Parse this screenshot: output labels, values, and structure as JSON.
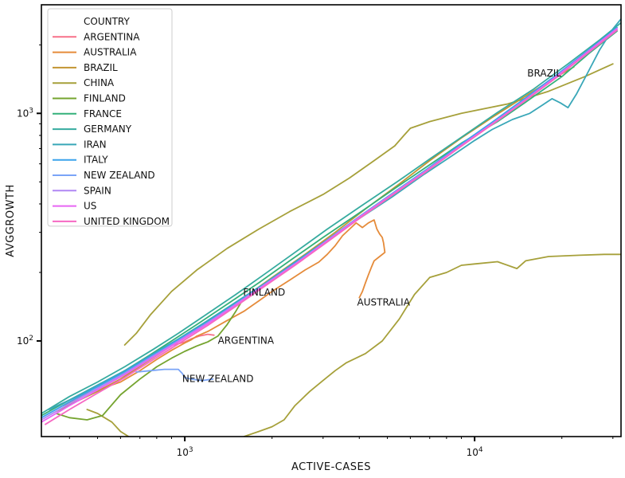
{
  "chart_data": {
    "type": "line",
    "xlabel": "ACTIVE-CASES",
    "ylabel": "AVGGROWTH",
    "xscale": "log",
    "yscale": "log",
    "xlim": [
      320,
      32000
    ],
    "ylim": [
      38,
      3000
    ],
    "xticks": [
      {
        "value": 1000,
        "base": "10",
        "exp": "3"
      },
      {
        "value": 10000,
        "base": "10",
        "exp": "4"
      }
    ],
    "yticks": [
      {
        "value": 100,
        "base": "10",
        "exp": "2"
      },
      {
        "value": 1000,
        "base": "10",
        "exp": "3"
      }
    ],
    "grid": false,
    "legend": {
      "title": "COUNTRY",
      "position": "top-left"
    },
    "series": [
      {
        "name": "ARGENTINA",
        "color": "#f77189",
        "points": [
          [
            920,
            96
          ],
          [
            1000,
            99
          ],
          [
            1050,
            102
          ],
          [
            1120,
            105
          ],
          [
            1200,
            107
          ],
          [
            1260,
            106
          ]
        ]
      },
      {
        "name": "AUSTRALIA",
        "color": "#e58b3a",
        "points": [
          [
            380,
            52
          ],
          [
            420,
            55
          ],
          [
            460,
            59
          ],
          [
            520,
            62
          ],
          [
            600,
            66
          ],
          [
            700,
            74
          ],
          [
            800,
            83
          ],
          [
            900,
            91
          ],
          [
            1000,
            98
          ],
          [
            1050,
            101
          ],
          [
            1100,
            105
          ],
          [
            1200,
            110
          ],
          [
            1400,
            123
          ],
          [
            1600,
            135
          ],
          [
            1800,
            150
          ],
          [
            2000,
            165
          ],
          [
            2300,
            185
          ],
          [
            2600,
            205
          ],
          [
            2900,
            222
          ],
          [
            3100,
            240
          ],
          [
            3300,
            262
          ],
          [
            3500,
            290
          ],
          [
            3700,
            310
          ],
          [
            3900,
            330
          ],
          [
            4100,
            315
          ],
          [
            4300,
            330
          ],
          [
            4500,
            340
          ],
          [
            4600,
            310
          ],
          [
            4700,
            295
          ],
          [
            4800,
            285
          ],
          [
            4850,
            270
          ],
          [
            4900,
            245
          ],
          [
            4700,
            235
          ],
          [
            4500,
            225
          ],
          [
            4400,
            210
          ],
          [
            4300,
            195
          ],
          [
            4200,
            180
          ],
          [
            4100,
            165
          ],
          [
            4000,
            155
          ]
        ]
      },
      {
        "name": "BRAZIL",
        "color": "#c39532",
        "points": [
          [
            360,
            49
          ],
          [
            420,
            54
          ],
          [
            500,
            60
          ],
          [
            600,
            68
          ],
          [
            750,
            82
          ],
          [
            900,
            95
          ],
          [
            1100,
            112
          ],
          [
            1300,
            130
          ],
          [
            1600,
            155
          ],
          [
            2000,
            190
          ],
          [
            2600,
            240
          ],
          [
            3300,
            300
          ],
          [
            4200,
            380
          ],
          [
            5500,
            490
          ],
          [
            7000,
            620
          ],
          [
            9000,
            780
          ],
          [
            11500,
            960
          ],
          [
            14500,
            1160
          ],
          [
            18000,
            1380
          ],
          [
            20500,
            1520
          ],
          [
            22000,
            1600
          ]
        ]
      },
      {
        "name": "CHINA",
        "color": "#a6a03a",
        "points": [
          [
            620,
            96
          ],
          [
            680,
            108
          ],
          [
            760,
            130
          ],
          [
            900,
            165
          ],
          [
            1100,
            205
          ],
          [
            1400,
            255
          ],
          [
            1800,
            310
          ],
          [
            2300,
            370
          ],
          [
            3000,
            440
          ],
          [
            3700,
            520
          ],
          [
            4500,
            620
          ],
          [
            5300,
            720
          ],
          [
            5700,
            800
          ],
          [
            6000,
            860
          ],
          [
            7000,
            920
          ],
          [
            9000,
            1000
          ],
          [
            13000,
            1100
          ],
          [
            18000,
            1250
          ],
          [
            24000,
            1450
          ],
          [
            30000,
            1650
          ]
        ]
      },
      {
        "name": "CHINA",
        "color": "#a6a03a",
        "points": [
          [
            1600,
            38
          ],
          [
            1800,
            40
          ],
          [
            2000,
            42
          ],
          [
            2200,
            45
          ],
          [
            2400,
            52
          ],
          [
            2700,
            60
          ],
          [
            3000,
            67
          ],
          [
            3300,
            74
          ],
          [
            3600,
            80
          ],
          [
            4200,
            88
          ],
          [
            4800,
            100
          ],
          [
            5500,
            125
          ],
          [
            6200,
            160
          ],
          [
            7000,
            190
          ],
          [
            8000,
            200
          ],
          [
            9000,
            215
          ],
          [
            10000,
            218
          ],
          [
            12000,
            223
          ],
          [
            14000,
            208
          ],
          [
            15000,
            225
          ],
          [
            18000,
            235
          ],
          [
            23000,
            238
          ],
          [
            28000,
            240
          ],
          [
            32000,
            240
          ]
        ]
      },
      {
        "name": "CHINA",
        "color": "#a6a03a",
        "points": [
          [
            460,
            50
          ],
          [
            500,
            48
          ],
          [
            560,
            44
          ],
          [
            600,
            40
          ],
          [
            640,
            38
          ]
        ]
      },
      {
        "name": "FINLAND",
        "color": "#75a42f",
        "points": [
          [
            360,
            48
          ],
          [
            400,
            46
          ],
          [
            460,
            45
          ],
          [
            520,
            47
          ],
          [
            600,
            58
          ],
          [
            700,
            68
          ],
          [
            800,
            77
          ],
          [
            900,
            84
          ],
          [
            1000,
            90
          ],
          [
            1100,
            95
          ],
          [
            1200,
            99
          ],
          [
            1300,
            105
          ],
          [
            1400,
            118
          ],
          [
            1500,
            135
          ],
          [
            1600,
            155
          ]
        ]
      },
      {
        "name": "FRANCE",
        "color": "#33b07a",
        "points": [
          [
            320,
            47
          ],
          [
            400,
            55
          ],
          [
            500,
            63
          ],
          [
            600,
            72
          ],
          [
            750,
            86
          ],
          [
            900,
            100
          ],
          [
            1100,
            118
          ],
          [
            1400,
            145
          ],
          [
            1800,
            180
          ],
          [
            2300,
            225
          ],
          [
            3000,
            285
          ],
          [
            4000,
            365
          ],
          [
            5200,
            460
          ],
          [
            6800,
            580
          ],
          [
            9000,
            740
          ],
          [
            12000,
            920
          ],
          [
            15000,
            1120
          ],
          [
            20000,
            1450
          ],
          [
            25000,
            1850
          ],
          [
            31000,
            2300
          ]
        ]
      },
      {
        "name": "GERMANY",
        "color": "#36ab9f",
        "points": [
          [
            320,
            48
          ],
          [
            400,
            57
          ],
          [
            500,
            66
          ],
          [
            620,
            77
          ],
          [
            780,
            92
          ],
          [
            950,
            108
          ],
          [
            1200,
            132
          ],
          [
            1500,
            160
          ],
          [
            1900,
            198
          ],
          [
            2400,
            245
          ],
          [
            3100,
            310
          ],
          [
            4100,
            395
          ],
          [
            5400,
            500
          ],
          [
            7000,
            630
          ],
          [
            9200,
            800
          ],
          [
            12000,
            1010
          ],
          [
            16000,
            1280
          ],
          [
            21000,
            1650
          ],
          [
            27000,
            2100
          ],
          [
            32000,
            2500
          ]
        ]
      },
      {
        "name": "IRAN",
        "color": "#39a7b8",
        "points": [
          [
            340,
            50
          ],
          [
            400,
            55
          ],
          [
            500,
            64
          ],
          [
            620,
            74
          ],
          [
            780,
            88
          ],
          [
            950,
            102
          ],
          [
            1200,
            123
          ],
          [
            1500,
            148
          ],
          [
            1900,
            180
          ],
          [
            2400,
            222
          ],
          [
            3100,
            278
          ],
          [
            4000,
            345
          ],
          [
            5200,
            430
          ],
          [
            6700,
            540
          ],
          [
            8500,
            660
          ],
          [
            10000,
            760
          ],
          [
            11500,
            850
          ],
          [
            13500,
            940
          ],
          [
            15500,
            1000
          ],
          [
            17000,
            1080
          ],
          [
            18500,
            1160
          ],
          [
            19800,
            1110
          ],
          [
            21000,
            1060
          ],
          [
            22500,
            1220
          ],
          [
            24500,
            1500
          ],
          [
            27000,
            1900
          ],
          [
            30000,
            2350
          ],
          [
            32000,
            2600
          ]
        ]
      },
      {
        "name": "ITALY",
        "color": "#3ba3ec",
        "points": [
          [
            320,
            46
          ],
          [
            400,
            54
          ],
          [
            500,
            63
          ],
          [
            620,
            73
          ],
          [
            780,
            87
          ],
          [
            950,
            101
          ],
          [
            1200,
            121
          ],
          [
            1500,
            146
          ],
          [
            1900,
            179
          ],
          [
            2400,
            220
          ],
          [
            3100,
            278
          ],
          [
            4000,
            352
          ],
          [
            5200,
            445
          ],
          [
            6800,
            565
          ],
          [
            8800,
            720
          ],
          [
            11500,
            915
          ],
          [
            15000,
            1170
          ],
          [
            19500,
            1500
          ],
          [
            25000,
            1920
          ],
          [
            31000,
            2380
          ]
        ]
      },
      {
        "name": "NEW ZEALAND",
        "color": "#7aa4f7",
        "points": [
          [
            680,
            73
          ],
          [
            760,
            74
          ],
          [
            850,
            75
          ],
          [
            950,
            75
          ],
          [
            980,
            72
          ],
          [
            1000,
            69
          ],
          [
            1050,
            68
          ],
          [
            1150,
            67
          ],
          [
            1250,
            68
          ]
        ]
      },
      {
        "name": "SPAIN",
        "color": "#b087f4",
        "points": [
          [
            320,
            45
          ],
          [
            400,
            53
          ],
          [
            500,
            62
          ],
          [
            620,
            72
          ],
          [
            780,
            86
          ],
          [
            950,
            100
          ],
          [
            1200,
            120
          ],
          [
            1500,
            145
          ],
          [
            1900,
            178
          ],
          [
            2400,
            218
          ],
          [
            3100,
            276
          ],
          [
            4000,
            350
          ],
          [
            5200,
            442
          ],
          [
            6800,
            560
          ],
          [
            8800,
            710
          ],
          [
            11500,
            900
          ],
          [
            15000,
            1150
          ],
          [
            19500,
            1470
          ],
          [
            25000,
            1880
          ],
          [
            31000,
            2330
          ]
        ]
      },
      {
        "name": "US",
        "color": "#e765f4",
        "points": [
          [
            320,
            44
          ],
          [
            400,
            52
          ],
          [
            500,
            61
          ],
          [
            620,
            71
          ],
          [
            780,
            85
          ],
          [
            950,
            99
          ],
          [
            1200,
            119
          ],
          [
            1500,
            144
          ],
          [
            1900,
            177
          ],
          [
            2400,
            217
          ],
          [
            3100,
            275
          ],
          [
            4000,
            349
          ],
          [
            5200,
            441
          ],
          [
            6800,
            558
          ],
          [
            8800,
            708
          ],
          [
            11500,
            900
          ],
          [
            15000,
            1150
          ],
          [
            19500,
            1480
          ],
          [
            25000,
            1900
          ],
          [
            31000,
            2360
          ]
        ]
      },
      {
        "name": "UNITED KINGDOM",
        "color": "#f668c2",
        "points": [
          [
            330,
            43
          ],
          [
            400,
            50
          ],
          [
            500,
            59
          ],
          [
            620,
            69
          ],
          [
            780,
            83
          ],
          [
            950,
            97
          ],
          [
            1200,
            117
          ],
          [
            1500,
            142
          ],
          [
            1900,
            175
          ],
          [
            2400,
            215
          ],
          [
            3100,
            272
          ],
          [
            4000,
            345
          ],
          [
            5200,
            437
          ],
          [
            6800,
            554
          ],
          [
            8800,
            703
          ],
          [
            11500,
            893
          ],
          [
            15000,
            1140
          ],
          [
            19500,
            1460
          ],
          [
            25000,
            1870
          ],
          [
            31000,
            2320
          ]
        ]
      }
    ],
    "annotations": [
      {
        "text": "BRAZIL",
        "x": 15200,
        "y": 1450
      },
      {
        "text": "FINLAND",
        "x": 1590,
        "y": 158
      },
      {
        "text": "AUSTRALIA",
        "x": 3930,
        "y": 143
      },
      {
        "text": "ARGENTINA",
        "x": 1300,
        "y": 97
      },
      {
        "text": "NEW ZEALAND",
        "x": 980,
        "y": 66
      }
    ]
  }
}
